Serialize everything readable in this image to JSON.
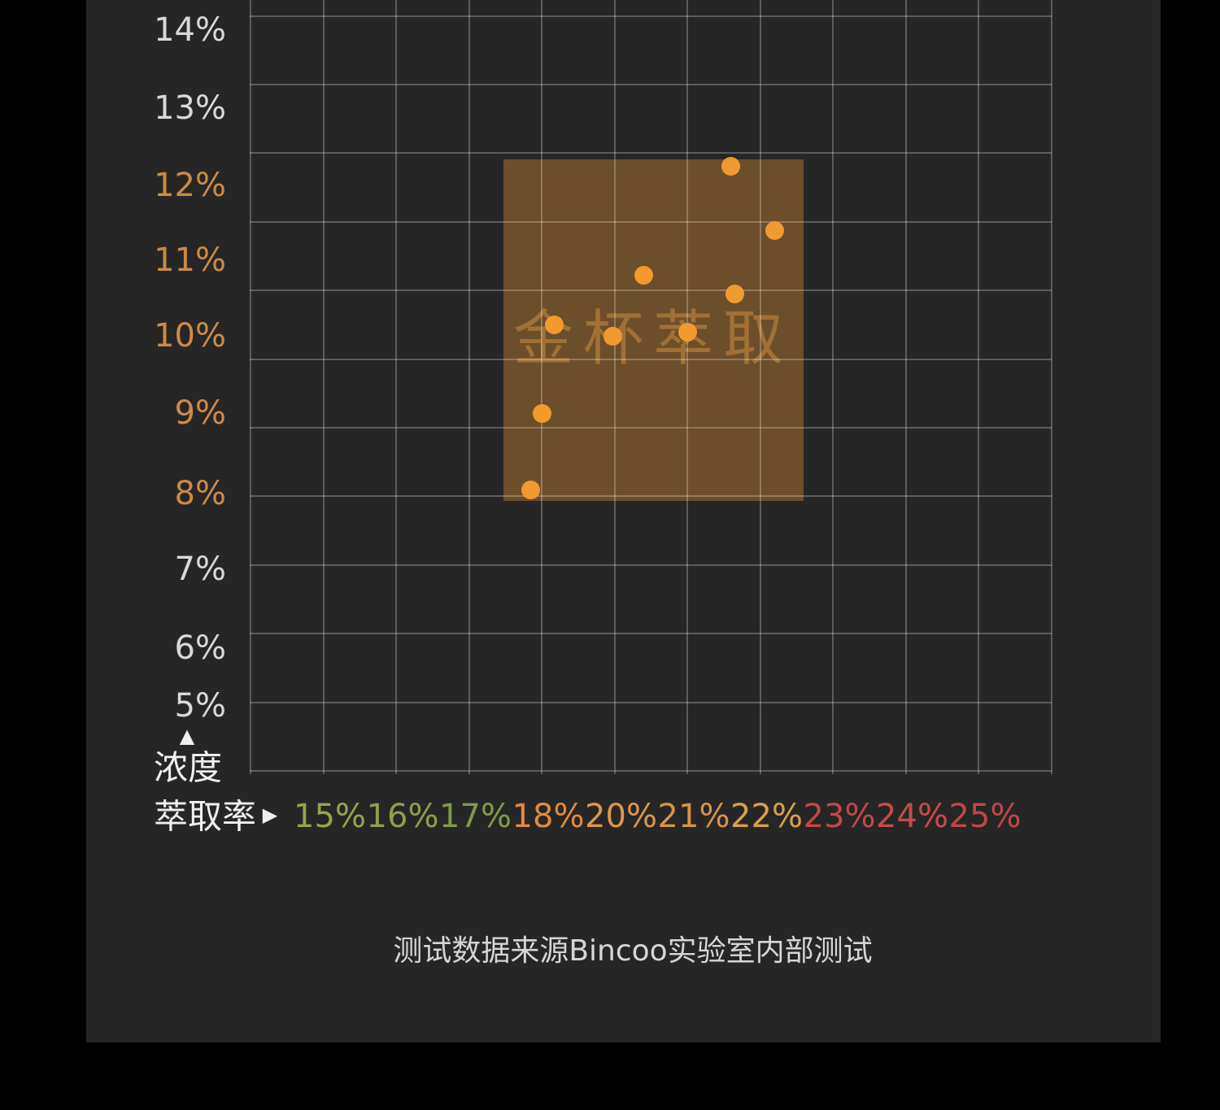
{
  "chart_data": {
    "type": "scatter",
    "caption": "测试数据来源Bincoo实验室内部测试",
    "x_axis": {
      "title": "萃取率",
      "arrow_icon": "▶",
      "ticks": [
        {
          "label": "15%",
          "value": 15,
          "color": "#9aa24d"
        },
        {
          "label": "16%",
          "value": 16,
          "color": "#8ca04c"
        },
        {
          "label": "17%",
          "value": 17,
          "color": "#7f9c4a"
        },
        {
          "label": "18%",
          "value": 18,
          "color": "#e08b3e"
        },
        {
          "label": "20%",
          "value": 20,
          "color": "#e0954a"
        },
        {
          "label": "21%",
          "value": 21,
          "color": "#d89348"
        },
        {
          "label": "22%",
          "value": 22,
          "color": "#d9a04a"
        },
        {
          "label": "23%",
          "value": 23,
          "color": "#c44848"
        },
        {
          "label": "24%",
          "value": 24,
          "color": "#c74b4b"
        },
        {
          "label": "25%",
          "value": 25,
          "color": "#c24646"
        }
      ]
    },
    "y_axis": {
      "title": "浓度",
      "arrow_icon": "▲",
      "ticks": [
        {
          "label": "14%",
          "value": 14,
          "color": "#d9d9d9"
        },
        {
          "label": "13%",
          "value": 13,
          "color": "#d9d9d9"
        },
        {
          "label": "12%",
          "value": 12,
          "color": "#cd8a45"
        },
        {
          "label": "11%",
          "value": 11,
          "color": "#cd8a45"
        },
        {
          "label": "10%",
          "value": 10,
          "color": "#cd8a45"
        },
        {
          "label": "9%",
          "value": 9,
          "color": "#cd8a45"
        },
        {
          "label": "8%",
          "value": 8,
          "color": "#cd8a45"
        },
        {
          "label": "7%",
          "value": 7,
          "color": "#d9d9d9"
        },
        {
          "label": "6%",
          "value": 6,
          "color": "#d9d9d9"
        },
        {
          "label": "5%",
          "value": 5,
          "color": "#d9d9d9"
        }
      ]
    },
    "points": [
      {
        "x": 21.6,
        "y": 12.25
      },
      {
        "x": 22.2,
        "y": 11.4
      },
      {
        "x": 20.4,
        "y": 10.8
      },
      {
        "x": 21.65,
        "y": 10.55
      },
      {
        "x": 18.35,
        "y": 10.15
      },
      {
        "x": 19.95,
        "y": 10.0
      },
      {
        "x": 21.0,
        "y": 10.05
      },
      {
        "x": 18.0,
        "y": 9.0
      },
      {
        "x": 17.85,
        "y": 8.05
      }
    ],
    "golden_zone": {
      "label": "金杯萃取",
      "x_min": 17.47,
      "x_max": 22.6,
      "y_min": 7.9,
      "y_max": 12.34
    },
    "colors": {
      "background": "#000000",
      "panel": "#262626",
      "gridline": "rgba(255,255,255,0.25)",
      "point": "#f19a30",
      "zone_fill": "rgba(214,140,50,0.40)",
      "watermark": "rgba(228,156,66,0.45)",
      "caption": "#d6d6d6",
      "axis_title": "#f0f0f0"
    }
  }
}
